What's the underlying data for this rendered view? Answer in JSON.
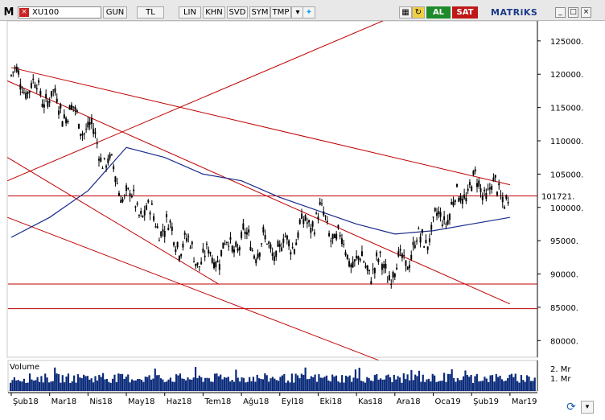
{
  "toolbar": {
    "symbol": "XU100",
    "period": "GUN",
    "currency": "TL",
    "scale": "LIN",
    "buttons": [
      "KHN",
      "SVD",
      "SYM",
      "TMP"
    ],
    "al_label": "AL",
    "sat_label": "SAT",
    "brand": "MATRiKS"
  },
  "chart_data": {
    "type": "line",
    "series_name": "XU100",
    "x": [
      "Şub18",
      "Mar18",
      "Nis18",
      "May18",
      "Haz18",
      "Tem18",
      "Ağu18",
      "Eyl18",
      "Eki18",
      "Kas18",
      "Ara18",
      "Oca19",
      "Şub19",
      "Mar19"
    ],
    "values": [
      119800,
      116500,
      112000,
      101500,
      97000,
      92000,
      95000,
      93500,
      99000,
      91500,
      90500,
      97000,
      103500,
      101721
    ],
    "last_value": "101721.",
    "yticks": [
      "125000.",
      "120000.",
      "115000.",
      "110000.",
      "105000.",
      "100000.",
      "95000.",
      "90000.",
      "85000.",
      "80000."
    ],
    "ylim": [
      77500,
      128000
    ],
    "moving_average": [
      95500,
      98500,
      102500,
      109000,
      107500,
      105000,
      104000,
      101500,
      99500,
      97500,
      96000,
      96500,
      97500,
      98500
    ],
    "volume_label": "Volume",
    "volume_ticks": [
      "2. Mr",
      "1. Mr"
    ],
    "price_color": "#000000",
    "ma_color": "#1a2a8a",
    "trendline_color": "#c00000",
    "volume_color": "#0a2a7a"
  }
}
